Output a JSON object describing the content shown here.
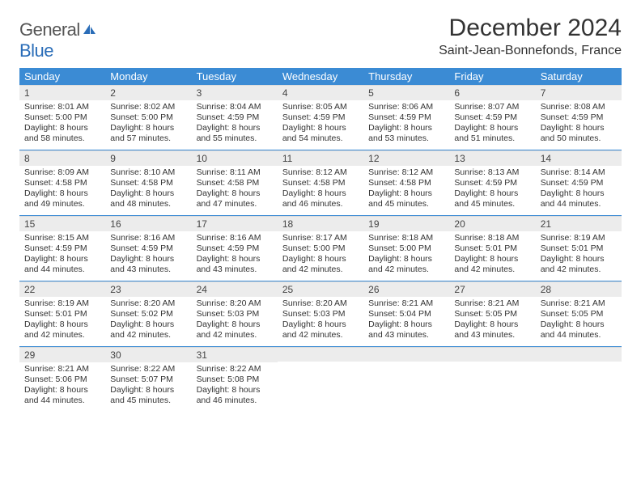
{
  "logo": {
    "text1": "General",
    "text2": "Blue"
  },
  "title": "December 2024",
  "location": "Saint-Jean-Bonnefonds, France",
  "colors": {
    "header_bar": "#3b8bd4",
    "daynum_bg": "#ececec",
    "separator": "#3b8bd4",
    "text": "#333333",
    "logo_gray": "#555555",
    "logo_blue": "#2a6db8"
  },
  "days_of_week": [
    "Sunday",
    "Monday",
    "Tuesday",
    "Wednesday",
    "Thursday",
    "Friday",
    "Saturday"
  ],
  "weeks": [
    [
      {
        "n": "1",
        "sr": "8:01 AM",
        "ss": "5:00 PM",
        "dl": "8 hours and 58 minutes."
      },
      {
        "n": "2",
        "sr": "8:02 AM",
        "ss": "5:00 PM",
        "dl": "8 hours and 57 minutes."
      },
      {
        "n": "3",
        "sr": "8:04 AM",
        "ss": "4:59 PM",
        "dl": "8 hours and 55 minutes."
      },
      {
        "n": "4",
        "sr": "8:05 AM",
        "ss": "4:59 PM",
        "dl": "8 hours and 54 minutes."
      },
      {
        "n": "5",
        "sr": "8:06 AM",
        "ss": "4:59 PM",
        "dl": "8 hours and 53 minutes."
      },
      {
        "n": "6",
        "sr": "8:07 AM",
        "ss": "4:59 PM",
        "dl": "8 hours and 51 minutes."
      },
      {
        "n": "7",
        "sr": "8:08 AM",
        "ss": "4:59 PM",
        "dl": "8 hours and 50 minutes."
      }
    ],
    [
      {
        "n": "8",
        "sr": "8:09 AM",
        "ss": "4:58 PM",
        "dl": "8 hours and 49 minutes."
      },
      {
        "n": "9",
        "sr": "8:10 AM",
        "ss": "4:58 PM",
        "dl": "8 hours and 48 minutes."
      },
      {
        "n": "10",
        "sr": "8:11 AM",
        "ss": "4:58 PM",
        "dl": "8 hours and 47 minutes."
      },
      {
        "n": "11",
        "sr": "8:12 AM",
        "ss": "4:58 PM",
        "dl": "8 hours and 46 minutes."
      },
      {
        "n": "12",
        "sr": "8:12 AM",
        "ss": "4:58 PM",
        "dl": "8 hours and 45 minutes."
      },
      {
        "n": "13",
        "sr": "8:13 AM",
        "ss": "4:59 PM",
        "dl": "8 hours and 45 minutes."
      },
      {
        "n": "14",
        "sr": "8:14 AM",
        "ss": "4:59 PM",
        "dl": "8 hours and 44 minutes."
      }
    ],
    [
      {
        "n": "15",
        "sr": "8:15 AM",
        "ss": "4:59 PM",
        "dl": "8 hours and 44 minutes."
      },
      {
        "n": "16",
        "sr": "8:16 AM",
        "ss": "4:59 PM",
        "dl": "8 hours and 43 minutes."
      },
      {
        "n": "17",
        "sr": "8:16 AM",
        "ss": "4:59 PM",
        "dl": "8 hours and 43 minutes."
      },
      {
        "n": "18",
        "sr": "8:17 AM",
        "ss": "5:00 PM",
        "dl": "8 hours and 42 minutes."
      },
      {
        "n": "19",
        "sr": "8:18 AM",
        "ss": "5:00 PM",
        "dl": "8 hours and 42 minutes."
      },
      {
        "n": "20",
        "sr": "8:18 AM",
        "ss": "5:01 PM",
        "dl": "8 hours and 42 minutes."
      },
      {
        "n": "21",
        "sr": "8:19 AM",
        "ss": "5:01 PM",
        "dl": "8 hours and 42 minutes."
      }
    ],
    [
      {
        "n": "22",
        "sr": "8:19 AM",
        "ss": "5:01 PM",
        "dl": "8 hours and 42 minutes."
      },
      {
        "n": "23",
        "sr": "8:20 AM",
        "ss": "5:02 PM",
        "dl": "8 hours and 42 minutes."
      },
      {
        "n": "24",
        "sr": "8:20 AM",
        "ss": "5:03 PM",
        "dl": "8 hours and 42 minutes."
      },
      {
        "n": "25",
        "sr": "8:20 AM",
        "ss": "5:03 PM",
        "dl": "8 hours and 42 minutes."
      },
      {
        "n": "26",
        "sr": "8:21 AM",
        "ss": "5:04 PM",
        "dl": "8 hours and 43 minutes."
      },
      {
        "n": "27",
        "sr": "8:21 AM",
        "ss": "5:05 PM",
        "dl": "8 hours and 43 minutes."
      },
      {
        "n": "28",
        "sr": "8:21 AM",
        "ss": "5:05 PM",
        "dl": "8 hours and 44 minutes."
      }
    ],
    [
      {
        "n": "29",
        "sr": "8:21 AM",
        "ss": "5:06 PM",
        "dl": "8 hours and 44 minutes."
      },
      {
        "n": "30",
        "sr": "8:22 AM",
        "ss": "5:07 PM",
        "dl": "8 hours and 45 minutes."
      },
      {
        "n": "31",
        "sr": "8:22 AM",
        "ss": "5:08 PM",
        "dl": "8 hours and 46 minutes."
      },
      null,
      null,
      null,
      null
    ]
  ],
  "labels": {
    "sunrise": "Sunrise: ",
    "sunset": "Sunset: ",
    "daylight": "Daylight: "
  }
}
